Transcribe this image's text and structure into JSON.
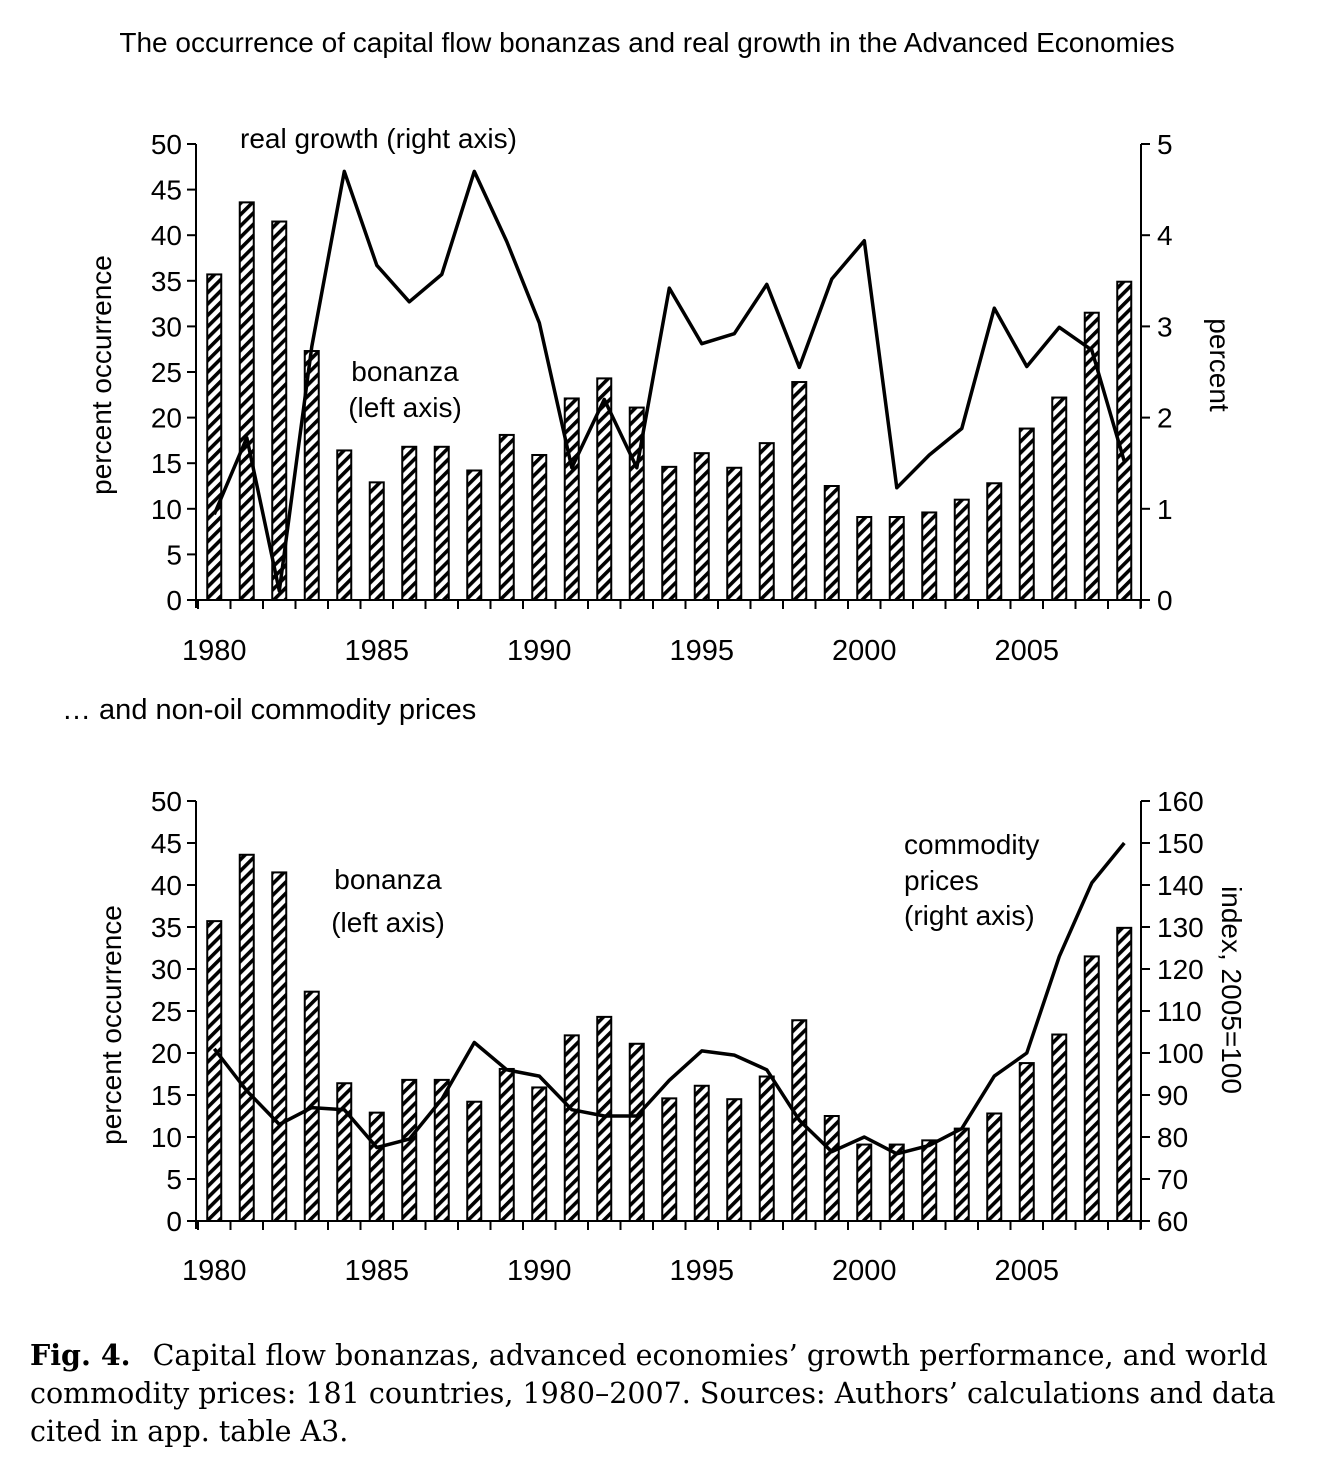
{
  "chart_data": [
    {
      "type": "bar+line",
      "title": "The occurrence of capital flow bonanzas and real growth in the Advanced Economies",
      "ylabel_left": "percent occurrence",
      "ylabel_right": "percent",
      "ylim_left": [
        0,
        50
      ],
      "ylim_right": [
        0,
        5
      ],
      "yticks_left": [
        "0",
        "5",
        "10",
        "15",
        "20",
        "25",
        "30",
        "35",
        "40",
        "45",
        "50"
      ],
      "yticks_right": [
        "0",
        "1",
        "2",
        "3",
        "4",
        "5"
      ],
      "xticks": [
        "1980",
        "1985",
        "1990",
        "1995",
        "2000",
        "2005"
      ],
      "x": [
        1980,
        1981,
        1982,
        1983,
        1984,
        1985,
        1986,
        1987,
        1988,
        1989,
        1990,
        1991,
        1992,
        1993,
        1994,
        1995,
        1996,
        1997,
        1998,
        1999,
        2000,
        2001,
        2002,
        2003,
        2004,
        2005,
        2006,
        2007,
        2008
      ],
      "series": [
        {
          "name": "bonanza",
          "label": [
            "bonanza",
            "(left axis)"
          ],
          "kind": "bar",
          "axis": "left",
          "values": [
            35.7,
            43.6,
            41.5,
            27.3,
            16.4,
            12.9,
            16.8,
            16.8,
            14.2,
            18.1,
            15.9,
            22.1,
            24.3,
            21.1,
            14.6,
            16.1,
            14.5,
            17.2,
            23.9,
            12.5,
            9.1,
            9.1,
            9.6,
            11.0,
            12.8,
            18.8,
            22.2,
            31.5,
            34.9
          ]
        },
        {
          "name": "real growth",
          "label": [
            "real growth (right axis)"
          ],
          "kind": "line",
          "axis": "right",
          "values": [
            0.94,
            1.78,
            0.1,
            2.78,
            4.7,
            3.67,
            3.27,
            3.57,
            4.7,
            3.93,
            3.04,
            1.45,
            2.2,
            1.45,
            3.42,
            2.81,
            2.92,
            3.46,
            2.55,
            3.52,
            3.94,
            1.23,
            1.59,
            1.88,
            3.2,
            2.56,
            2.99,
            2.74,
            1.52
          ]
        }
      ]
    },
    {
      "type": "bar+line",
      "title": "… and non-oil commodity prices",
      "ylabel_left": "percent occurrence",
      "ylabel_right": "index, 2005=100",
      "ylim_left": [
        0,
        50
      ],
      "ylim_right": [
        60,
        160
      ],
      "yticks_left": [
        "0",
        "5",
        "10",
        "15",
        "20",
        "25",
        "30",
        "35",
        "40",
        "45",
        "50"
      ],
      "yticks_right": [
        "60",
        "70",
        "80",
        "90",
        "100",
        "110",
        "120",
        "130",
        "140",
        "150",
        "160"
      ],
      "xticks": [
        "1980",
        "1985",
        "1990",
        "1995",
        "2000",
        "2005"
      ],
      "x": [
        1980,
        1981,
        1982,
        1983,
        1984,
        1985,
        1986,
        1987,
        1988,
        1989,
        1990,
        1991,
        1992,
        1993,
        1994,
        1995,
        1996,
        1997,
        1998,
        1999,
        2000,
        2001,
        2002,
        2003,
        2004,
        2005,
        2006,
        2007,
        2008
      ],
      "series": [
        {
          "name": "bonanza",
          "label": [
            "bonanza",
            "(left axis)"
          ],
          "kind": "bar",
          "axis": "left",
          "values": [
            35.7,
            43.6,
            41.5,
            27.3,
            16.4,
            12.9,
            16.8,
            16.8,
            14.2,
            18.1,
            15.9,
            22.1,
            24.3,
            21.1,
            14.6,
            16.1,
            14.5,
            17.2,
            23.9,
            12.5,
            9.1,
            9.1,
            9.6,
            11.0,
            12.8,
            18.8,
            22.2,
            31.5,
            34.9
          ]
        },
        {
          "name": "commodity prices",
          "label": [
            "commodity",
            "prices",
            "(right axis)"
          ],
          "kind": "line",
          "axis": "right",
          "values": [
            101,
            91,
            83,
            87,
            86.5,
            77.5,
            79.5,
            89,
            102.5,
            96,
            94.5,
            86.5,
            85,
            85,
            93.5,
            100.5,
            99.5,
            96,
            84,
            76.5,
            80,
            76,
            78,
            82,
            94.5,
            100,
            123,
            140.5,
            150
          ]
        }
      ]
    }
  ],
  "caption": {
    "label": "Fig. 4.",
    "text": "Capital flow bonanzas, advanced economies’ growth performance, and world commodity prices: 181 countries, 1980–2007. Sources: Authors’ calculations and data cited in app. table A3."
  }
}
